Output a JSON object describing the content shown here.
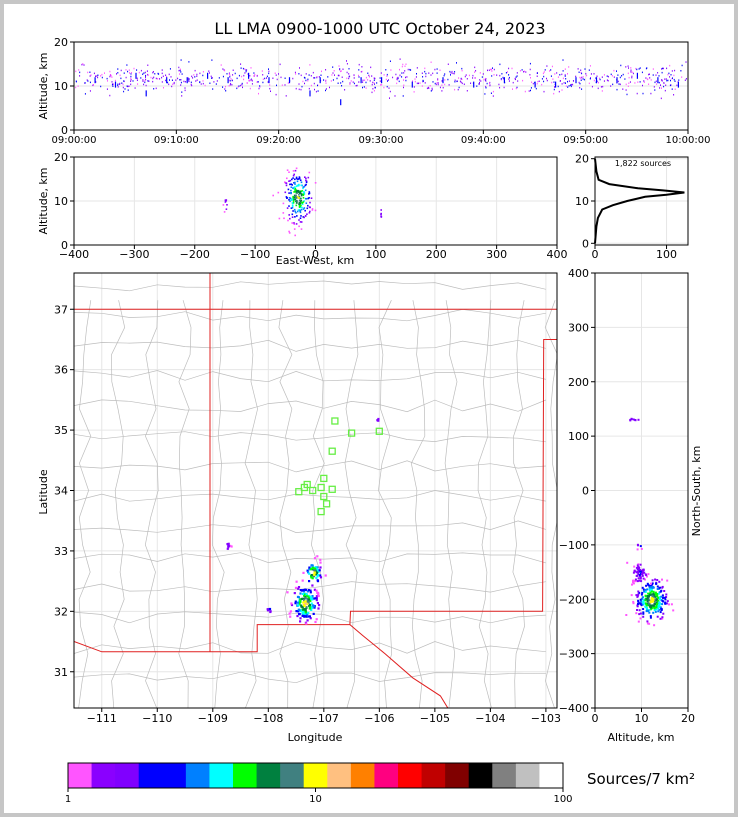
{
  "chart_data": [
    {
      "type": "scatter",
      "name": "altitude-time",
      "title": "LL LMA 0900-1000 UTC October 24, 2023",
      "ylabel": "Altitude, km",
      "xlim": [
        "09:00:00",
        "10:00:00"
      ],
      "ylim": [
        0,
        20
      ],
      "x_ticks": [
        "09:00:00",
        "09:10:00",
        "09:20:00",
        "09:30:00",
        "09:40:00",
        "09:50:00",
        "10:00:00"
      ],
      "y_ticks": [
        "0",
        "10",
        "20"
      ],
      "grid": true,
      "points_description_minutes_altitude": [
        [
          2,
          12
        ],
        [
          4,
          11
        ],
        [
          6,
          13
        ],
        [
          7,
          9
        ],
        [
          9,
          12
        ],
        [
          11,
          12
        ],
        [
          13,
          13
        ],
        [
          15,
          12
        ],
        [
          17,
          13
        ],
        [
          19,
          12
        ],
        [
          21,
          12
        ],
        [
          23,
          9
        ],
        [
          24,
          12
        ],
        [
          26,
          7
        ],
        [
          28,
          12
        ],
        [
          30,
          12
        ],
        [
          33,
          11
        ],
        [
          36,
          12
        ],
        [
          39,
          11
        ],
        [
          42,
          12
        ],
        [
          45,
          11
        ],
        [
          47,
          11
        ],
        [
          49,
          12
        ],
        [
          51,
          12
        ],
        [
          53,
          12
        ],
        [
          55,
          13
        ],
        [
          57,
          12
        ],
        [
          59,
          11
        ]
      ]
    },
    {
      "type": "scatter",
      "name": "altitude-eastwest",
      "xlabel": "East-West, km",
      "ylabel": "Altitude, km",
      "xlim": [
        -400,
        400
      ],
      "ylim": [
        0,
        20
      ],
      "x_ticks": [
        "−400",
        "−300",
        "−200",
        "−100",
        "0",
        "100",
        "200",
        "300",
        "400"
      ],
      "y_ticks": [
        "0",
        "10",
        "20"
      ],
      "grid": true,
      "clusters_km": [
        {
          "x": -30,
          "y": 11,
          "spread_x": 20,
          "spread_y": 5,
          "n": 240
        },
        {
          "x": -150,
          "y": 9.5,
          "spread_x": 3,
          "spread_y": 1.5,
          "n": 10
        },
        {
          "x": 108,
          "y": 7,
          "spread_x": 2,
          "spread_y": 1.5,
          "n": 6
        }
      ]
    },
    {
      "type": "line",
      "name": "altitude-histogram",
      "annotation": "1,822 sources",
      "xlim": [
        0,
        130
      ],
      "ylim": [
        0,
        20
      ],
      "x_ticks": [
        "0",
        "100"
      ],
      "y_ticks": [
        "0",
        "10",
        "20"
      ],
      "profile": [
        [
          0,
          0
        ],
        [
          2,
          4
        ],
        [
          4,
          6
        ],
        [
          10,
          8
        ],
        [
          25,
          9
        ],
        [
          45,
          10
        ],
        [
          70,
          11
        ],
        [
          100,
          11.5
        ],
        [
          125,
          12
        ],
        [
          95,
          12.5
        ],
        [
          60,
          13
        ],
        [
          20,
          14
        ],
        [
          5,
          15
        ],
        [
          2,
          17
        ],
        [
          0,
          20
        ]
      ]
    },
    {
      "type": "scatter",
      "name": "map-plan-view",
      "xlabel": "Longitude",
      "ylabel": "Latitude",
      "xlim": [
        -111.5,
        -102.8
      ],
      "ylim": [
        30.4,
        37.6
      ],
      "x_ticks": [
        "−111",
        "−110",
        "−109",
        "−108",
        "−107",
        "−106",
        "−105",
        "−104",
        "−103"
      ],
      "y_ticks": [
        "31",
        "32",
        "33",
        "34",
        "35",
        "36",
        "37"
      ],
      "grid": true,
      "stations": [
        [
          -106.8,
          35.15
        ],
        [
          -106.5,
          34.95
        ],
        [
          -106.0,
          34.98
        ],
        [
          -106.85,
          34.65
        ],
        [
          -107.0,
          34.2
        ],
        [
          -107.05,
          34.05
        ],
        [
          -107.2,
          34.0
        ],
        [
          -107.35,
          34.05
        ],
        [
          -107.45,
          33.98
        ],
        [
          -107.3,
          34.1
        ],
        [
          -107.0,
          33.9
        ],
        [
          -106.85,
          34.02
        ],
        [
          -106.95,
          33.78
        ],
        [
          -107.05,
          33.65
        ]
      ],
      "clusters": [
        {
          "lon": -107.2,
          "lat": 32.65,
          "spread": 0.12,
          "n": 60
        },
        {
          "lon": -107.35,
          "lat": 32.15,
          "spread": 0.18,
          "n": 160
        },
        {
          "lon": -108.75,
          "lat": 33.1,
          "spread": 0.04,
          "n": 8
        },
        {
          "lon": -108.0,
          "lat": 32.05,
          "spread": 0.05,
          "n": 6
        },
        {
          "lon": -106.05,
          "lat": 35.18,
          "spread": 0.02,
          "n": 4
        }
      ]
    },
    {
      "type": "scatter",
      "name": "altitude-northsouth",
      "xlabel": "Altitude, km",
      "ylabel": "North-South, km",
      "xlim": [
        0,
        20
      ],
      "ylim": [
        -400,
        400
      ],
      "x_ticks": [
        "0",
        "10",
        "20"
      ],
      "y_ticks": [
        "−400",
        "−300",
        "−200",
        "−100",
        "0",
        "100",
        "200",
        "300",
        "400"
      ],
      "grid": true,
      "clusters_km": [
        {
          "alt": 12,
          "ns": -200,
          "spread_alt": 3,
          "spread_ns": 30,
          "n": 260
        },
        {
          "alt": 9.5,
          "ns": -150,
          "spread_alt": 1.5,
          "spread_ns": 15,
          "n": 60
        },
        {
          "alt": 8,
          "ns": 132,
          "spread_alt": 1.2,
          "spread_ns": 2,
          "n": 8
        },
        {
          "alt": 9.5,
          "ns": -100,
          "spread_alt": 1,
          "spread_ns": 5,
          "n": 5
        }
      ]
    },
    {
      "type": "heatmap",
      "name": "colorbar",
      "title": "Sources/7 km²",
      "scale": "log",
      "range": [
        1,
        100
      ],
      "tick_labels": [
        "1",
        "10",
        "100"
      ],
      "colors": [
        "#ff55ff",
        "#8a00ff",
        "#8000ff",
        "#0000ff",
        "#0000ff",
        "#0080ff",
        "#00ffff",
        "#00ff00",
        "#00803f",
        "#408080",
        "#ffff00",
        "#ffc080",
        "#ff8000",
        "#ff0080",
        "#ff0000",
        "#c00000",
        "#800000",
        "#000000",
        "#808080",
        "#c0c0c0",
        "#ffffff"
      ]
    }
  ]
}
